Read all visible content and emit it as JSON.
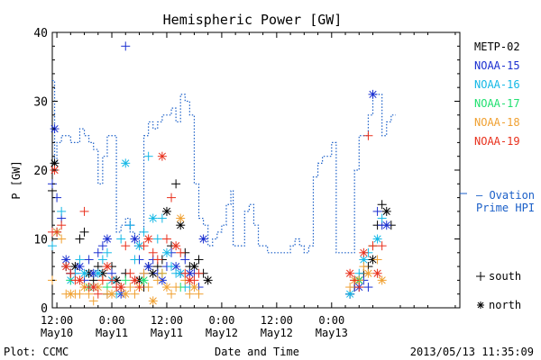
{
  "chart_data": {
    "type": "scatter",
    "title": "Hemispheric Power [GW]",
    "ylabel": "P [GW]",
    "xlabel": "Date and Time",
    "ylim": [
      0,
      40
    ],
    "yticks": [
      0,
      10,
      20,
      30,
      40
    ],
    "xrange_hours": [
      -1,
      88
    ],
    "xticks": [
      {
        "time": "12:00",
        "date": "May10",
        "hours": 0
      },
      {
        "time": "0:00",
        "date": "May11",
        "hours": 12
      },
      {
        "time": "12:00",
        "date": "May11",
        "hours": 24
      },
      {
        "time": "0:00",
        "date": "May12",
        "hours": 36
      },
      {
        "time": "12:00",
        "date": "May12",
        "hours": 48
      },
      {
        "time": "0:00",
        "date": "May13",
        "hours": 60
      }
    ],
    "legend": [
      {
        "name": "METP-02",
        "color": "#000000"
      },
      {
        "name": "NOAA-15",
        "color": "#1a2fd0"
      },
      {
        "name": "NOAA-16",
        "color": "#14b8e6"
      },
      {
        "name": "NOAA-17",
        "color": "#20e070"
      },
      {
        "name": "NOAA-18",
        "color": "#f0a030"
      },
      {
        "name": "NOAA-19",
        "color": "#e8301c"
      }
    ],
    "ovation": {
      "label_line1": "– Ovation",
      "label_line2": "Prime HPI",
      "color": "#1a5fc8",
      "points": [
        [
          -1,
          33
        ],
        [
          -0.5,
          21
        ],
        [
          0,
          24
        ],
        [
          1,
          25
        ],
        [
          2,
          25
        ],
        [
          3,
          24
        ],
        [
          4,
          24
        ],
        [
          5,
          26
        ],
        [
          6,
          25
        ],
        [
          7,
          24
        ],
        [
          8,
          23
        ],
        [
          9,
          18
        ],
        [
          10,
          22
        ],
        [
          11,
          25
        ],
        [
          12,
          25
        ],
        [
          13,
          11
        ],
        [
          14,
          12
        ],
        [
          15,
          13
        ],
        [
          16,
          11
        ],
        [
          17,
          9
        ],
        [
          18,
          11
        ],
        [
          19,
          25
        ],
        [
          20,
          27
        ],
        [
          21,
          26
        ],
        [
          22,
          27
        ],
        [
          23,
          28
        ],
        [
          24,
          28
        ],
        [
          25,
          29
        ],
        [
          26,
          27
        ],
        [
          27,
          31
        ],
        [
          28,
          30
        ],
        [
          29,
          28
        ],
        [
          30,
          18
        ],
        [
          31,
          13
        ],
        [
          32,
          12
        ],
        [
          33,
          9
        ],
        [
          34,
          10
        ],
        [
          35,
          11
        ],
        [
          36,
          12
        ],
        [
          37,
          15
        ],
        [
          38,
          17
        ],
        [
          38.5,
          9
        ],
        [
          40,
          9
        ],
        [
          41,
          14
        ],
        [
          42,
          15
        ],
        [
          43,
          12
        ],
        [
          44,
          9
        ],
        [
          45,
          9
        ],
        [
          46,
          8
        ],
        [
          47,
          8
        ],
        [
          48,
          8
        ],
        [
          49,
          8
        ],
        [
          50,
          8
        ],
        [
          51,
          9
        ],
        [
          52,
          10
        ],
        [
          53,
          9
        ],
        [
          54,
          8
        ],
        [
          55,
          9
        ],
        [
          56,
          19
        ],
        [
          57,
          21
        ],
        [
          58,
          22
        ],
        [
          59,
          22
        ],
        [
          60,
          24
        ],
        [
          61,
          8
        ],
        [
          62,
          8
        ],
        [
          63,
          8
        ],
        [
          64,
          8
        ],
        [
          65,
          20
        ],
        [
          66,
          25
        ],
        [
          67,
          25
        ],
        [
          68,
          28
        ],
        [
          69,
          31
        ],
        [
          70,
          31
        ],
        [
          71,
          25
        ],
        [
          72,
          27
        ],
        [
          73,
          28
        ],
        [
          74,
          28
        ]
      ]
    },
    "series": [
      {
        "name": "METP-02",
        "color": "#000000",
        "points": [
          [
            -1,
            17
          ],
          [
            -0.5,
            21
          ],
          [
            2,
            6
          ],
          [
            3,
            5
          ],
          [
            4,
            6
          ],
          [
            5,
            10
          ],
          [
            6,
            11
          ],
          [
            7,
            5
          ],
          [
            8,
            4
          ],
          [
            9,
            6
          ],
          [
            10,
            5
          ],
          [
            11,
            2
          ],
          [
            12,
            6
          ],
          [
            13,
            4
          ],
          [
            14,
            3
          ],
          [
            15,
            5
          ],
          [
            18,
            4
          ],
          [
            19,
            3
          ],
          [
            20,
            6
          ],
          [
            21,
            5
          ],
          [
            22,
            6
          ],
          [
            23,
            7
          ],
          [
            24,
            14
          ],
          [
            25,
            9
          ],
          [
            26,
            18
          ],
          [
            27,
            12
          ],
          [
            28,
            8
          ],
          [
            29,
            6
          ],
          [
            30,
            6
          ],
          [
            31,
            7
          ],
          [
            32,
            5
          ],
          [
            33,
            4
          ],
          [
            64,
            2
          ],
          [
            65,
            3
          ],
          [
            66,
            4
          ],
          [
            67,
            5
          ],
          [
            68,
            6
          ],
          [
            69,
            7
          ],
          [
            70,
            12
          ],
          [
            71,
            15
          ],
          [
            72,
            14
          ],
          [
            73,
            12
          ]
        ]
      },
      {
        "name": "NOAA-15",
        "color": "#1a2fd0",
        "points": [
          [
            -1,
            18
          ],
          [
            -0.5,
            26
          ],
          [
            0,
            16
          ],
          [
            1,
            13
          ],
          [
            2,
            7
          ],
          [
            3,
            5
          ],
          [
            4,
            5
          ],
          [
            5,
            6
          ],
          [
            6,
            4
          ],
          [
            7,
            7
          ],
          [
            8,
            5
          ],
          [
            9,
            8
          ],
          [
            10,
            9
          ],
          [
            11,
            10
          ],
          [
            12,
            5
          ],
          [
            13,
            3
          ],
          [
            14,
            2
          ],
          [
            15,
            38
          ],
          [
            16,
            12
          ],
          [
            17,
            10
          ],
          [
            18,
            7
          ],
          [
            19,
            5
          ],
          [
            20,
            6
          ],
          [
            21,
            7
          ],
          [
            22,
            5
          ],
          [
            23,
            4
          ],
          [
            24,
            6
          ],
          [
            25,
            8
          ],
          [
            26,
            6
          ],
          [
            27,
            5
          ],
          [
            28,
            7
          ],
          [
            29,
            5
          ],
          [
            30,
            5
          ],
          [
            31,
            3
          ],
          [
            32,
            10
          ],
          [
            64,
            2
          ],
          [
            65,
            3
          ],
          [
            66,
            3
          ],
          [
            67,
            4
          ],
          [
            68,
            3
          ],
          [
            69,
            31
          ],
          [
            70,
            14
          ],
          [
            71,
            12
          ],
          [
            72,
            12
          ]
        ]
      },
      {
        "name": "NOAA-16",
        "color": "#14b8e6",
        "points": [
          [
            -1,
            9
          ],
          [
            0,
            11
          ],
          [
            1,
            14
          ],
          [
            2,
            6
          ],
          [
            3,
            4
          ],
          [
            4,
            5
          ],
          [
            5,
            7
          ],
          [
            6,
            5
          ],
          [
            7,
            3
          ],
          [
            8,
            3
          ],
          [
            9,
            5
          ],
          [
            10,
            7
          ],
          [
            11,
            8
          ],
          [
            12,
            4
          ],
          [
            13,
            2
          ],
          [
            14,
            10
          ],
          [
            15,
            21
          ],
          [
            16,
            12
          ],
          [
            17,
            7
          ],
          [
            18,
            9
          ],
          [
            19,
            11
          ],
          [
            20,
            22
          ],
          [
            21,
            13
          ],
          [
            22,
            10
          ],
          [
            23,
            13
          ],
          [
            24,
            8
          ],
          [
            25,
            6
          ],
          [
            26,
            5
          ],
          [
            27,
            5
          ],
          [
            28,
            3
          ],
          [
            29,
            3
          ],
          [
            64,
            2
          ],
          [
            65,
            4
          ],
          [
            66,
            5
          ],
          [
            67,
            7
          ],
          [
            68,
            8
          ],
          [
            69,
            9
          ],
          [
            70,
            10
          ],
          [
            71,
            13
          ]
        ]
      },
      {
        "name": "NOAA-17",
        "color": "#20e070",
        "points": [
          [
            3,
            4
          ],
          [
            7,
            3
          ],
          [
            11,
            3
          ],
          [
            15,
            4
          ],
          [
            19,
            4
          ],
          [
            23,
            5
          ],
          [
            27,
            3
          ],
          [
            66,
            4
          ],
          [
            69,
            9
          ]
        ]
      },
      {
        "name": "NOAA-18",
        "color": "#f0a030",
        "points": [
          [
            -1,
            4
          ],
          [
            0,
            11
          ],
          [
            1,
            10
          ],
          [
            2,
            2
          ],
          [
            3,
            2
          ],
          [
            4,
            2
          ],
          [
            5,
            2
          ],
          [
            6,
            3
          ],
          [
            7,
            2
          ],
          [
            8,
            1
          ],
          [
            9,
            3
          ],
          [
            10,
            4
          ],
          [
            11,
            2
          ],
          [
            12,
            2
          ],
          [
            13,
            3
          ],
          [
            14,
            3
          ],
          [
            15,
            2
          ],
          [
            16,
            3
          ],
          [
            17,
            2
          ],
          [
            18,
            3
          ],
          [
            19,
            5
          ],
          [
            20,
            3
          ],
          [
            21,
            1
          ],
          [
            22,
            4
          ],
          [
            23,
            5
          ],
          [
            24,
            3
          ],
          [
            25,
            2
          ],
          [
            26,
            3
          ],
          [
            27,
            13
          ],
          [
            28,
            4
          ],
          [
            29,
            2
          ],
          [
            30,
            3
          ],
          [
            31,
            2
          ],
          [
            64,
            3
          ],
          [
            65,
            4
          ],
          [
            66,
            4
          ],
          [
            67,
            6
          ],
          [
            68,
            5
          ],
          [
            69,
            9
          ],
          [
            70,
            7
          ],
          [
            71,
            4
          ]
        ]
      },
      {
        "name": "NOAA-19",
        "color": "#e8301c",
        "points": [
          [
            -1,
            11
          ],
          [
            -0.5,
            20
          ],
          [
            0,
            11
          ],
          [
            1,
            12
          ],
          [
            2,
            6
          ],
          [
            3,
            5
          ],
          [
            4,
            4
          ],
          [
            5,
            4
          ],
          [
            6,
            14
          ],
          [
            7,
            3
          ],
          [
            8,
            3
          ],
          [
            9,
            2
          ],
          [
            10,
            4
          ],
          [
            11,
            6
          ],
          [
            12,
            4
          ],
          [
            13,
            3
          ],
          [
            14,
            3
          ],
          [
            15,
            9
          ],
          [
            16,
            5
          ],
          [
            17,
            4
          ],
          [
            18,
            3
          ],
          [
            19,
            9
          ],
          [
            20,
            10
          ],
          [
            21,
            8
          ],
          [
            22,
            7
          ],
          [
            23,
            22
          ],
          [
            24,
            10
          ],
          [
            25,
            16
          ],
          [
            26,
            9
          ],
          [
            27,
            8
          ],
          [
            28,
            5
          ],
          [
            29,
            4
          ],
          [
            30,
            4
          ],
          [
            31,
            5
          ],
          [
            64,
            5
          ],
          [
            65,
            4
          ],
          [
            66,
            3
          ],
          [
            67,
            8
          ],
          [
            68,
            25
          ],
          [
            69,
            9
          ],
          [
            70,
            5
          ],
          [
            71,
            9
          ]
        ]
      }
    ],
    "markers": {
      "south_label": "south",
      "north_label": "north"
    }
  },
  "footer": {
    "left": "Plot: CCMC",
    "right": "2013/05/13 11:35:09"
  }
}
